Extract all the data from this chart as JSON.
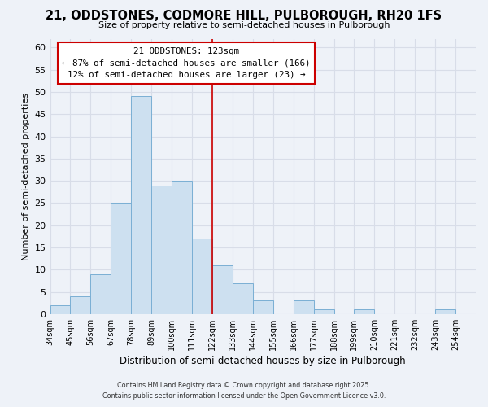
{
  "title": "21, ODDSTONES, CODMORE HILL, PULBOROUGH, RH20 1FS",
  "subtitle": "Size of property relative to semi-detached houses in Pulborough",
  "xlabel": "Distribution of semi-detached houses by size in Pulborough",
  "ylabel": "Number of semi-detached properties",
  "bin_labels": [
    "34sqm",
    "45sqm",
    "56sqm",
    "67sqm",
    "78sqm",
    "89sqm",
    "100sqm",
    "111sqm",
    "122sqm",
    "133sqm",
    "144sqm",
    "155sqm",
    "166sqm",
    "177sqm",
    "188sqm",
    "199sqm",
    "210sqm",
    "221sqm",
    "232sqm",
    "243sqm",
    "254sqm"
  ],
  "bin_edges": [
    34,
    45,
    56,
    67,
    78,
    89,
    100,
    111,
    122,
    133,
    144,
    155,
    166,
    177,
    188,
    199,
    210,
    221,
    232,
    243,
    254,
    265
  ],
  "bar_heights": [
    2,
    4,
    9,
    25,
    49,
    29,
    30,
    17,
    11,
    7,
    3,
    0,
    3,
    1,
    0,
    1,
    0,
    0,
    0,
    1,
    0
  ],
  "bar_color": "#cde0f0",
  "bar_edge_color": "#7aafd4",
  "vline_x": 122,
  "vline_color": "#cc0000",
  "annotation_title": "21 ODDSTONES: 123sqm",
  "annotation_line1": "← 87% of semi-detached houses are smaller (166)",
  "annotation_line2": "12% of semi-detached houses are larger (23) →",
  "annotation_box_color": "#ffffff",
  "annotation_box_edge": "#cc0000",
  "ylim": [
    0,
    62
  ],
  "yticks": [
    0,
    5,
    10,
    15,
    20,
    25,
    30,
    35,
    40,
    45,
    50,
    55,
    60
  ],
  "bg_color": "#eef2f8",
  "grid_color": "#d8dde8",
  "footnote1": "Contains HM Land Registry data © Crown copyright and database right 2025.",
  "footnote2": "Contains public sector information licensed under the Open Government Licence v3.0."
}
